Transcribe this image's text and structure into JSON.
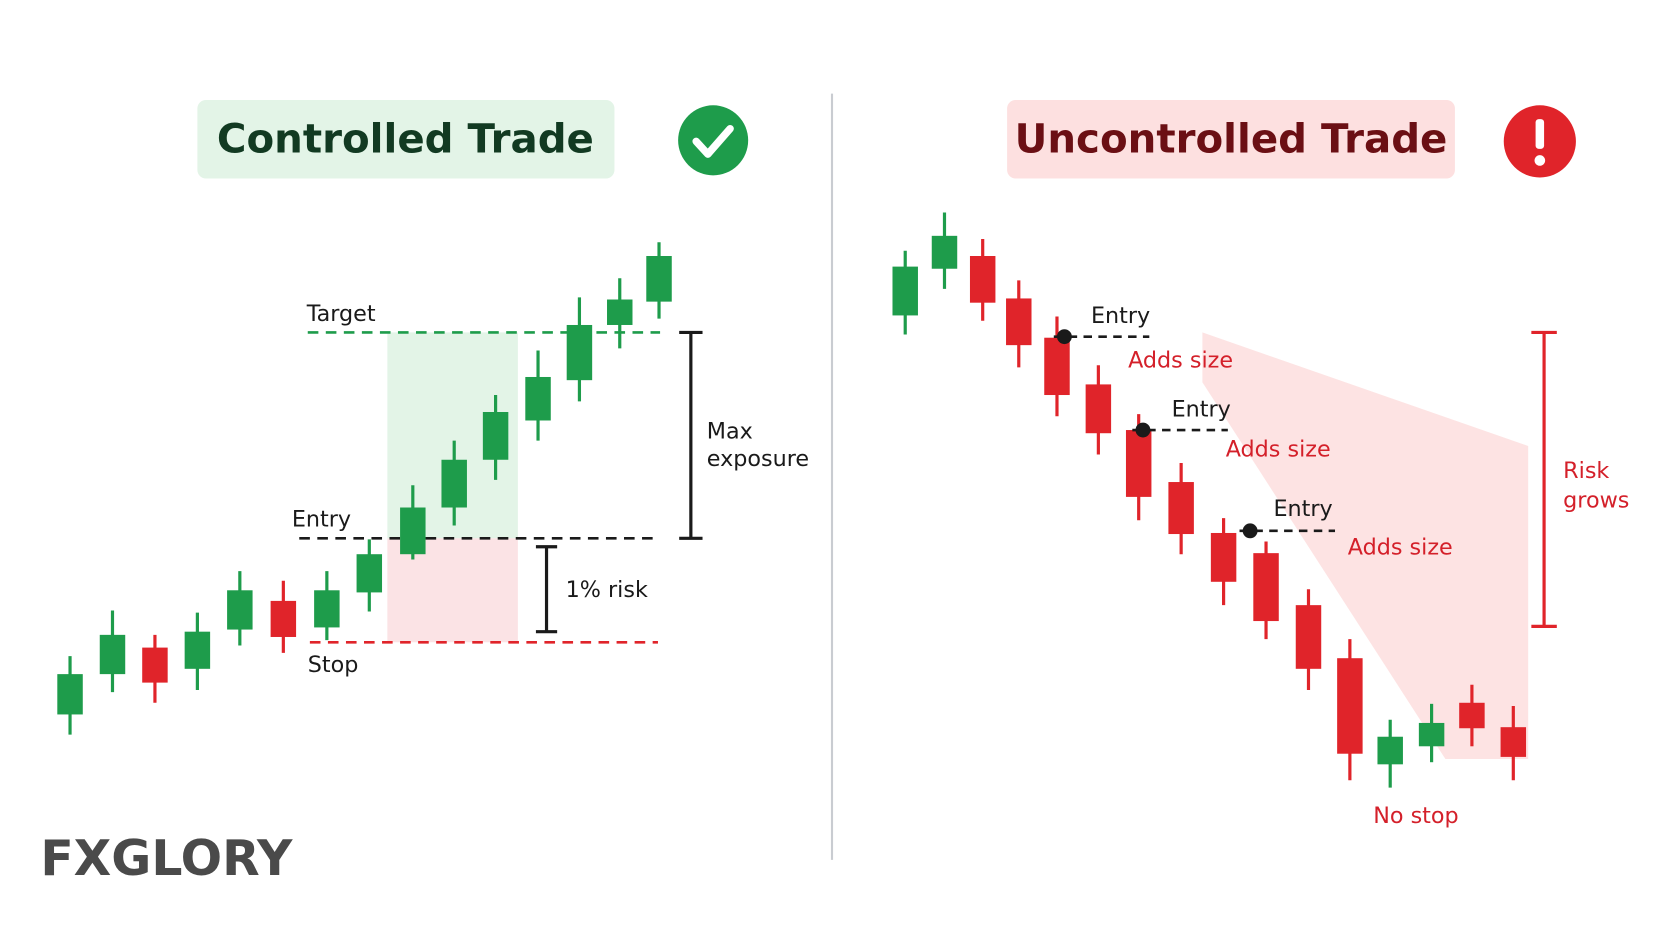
{
  "left": {
    "title": "Controlled Trade",
    "target": "Target",
    "entry": "Entry",
    "stop": "Stop",
    "exposure": [
      "Max",
      "exposure"
    ],
    "risk": "1% risk"
  },
  "right": {
    "title": "Uncontrolled Trade",
    "entries": [
      {
        "label": "Entry",
        "note": "Adds size"
      },
      {
        "label": "Entry",
        "note": "Adds size"
      },
      {
        "label": "Entry",
        "note": "Adds size"
      }
    ],
    "risk": [
      "Risk",
      "grows"
    ],
    "no_stop": "No stop"
  },
  "logo": "FXGLORY"
}
